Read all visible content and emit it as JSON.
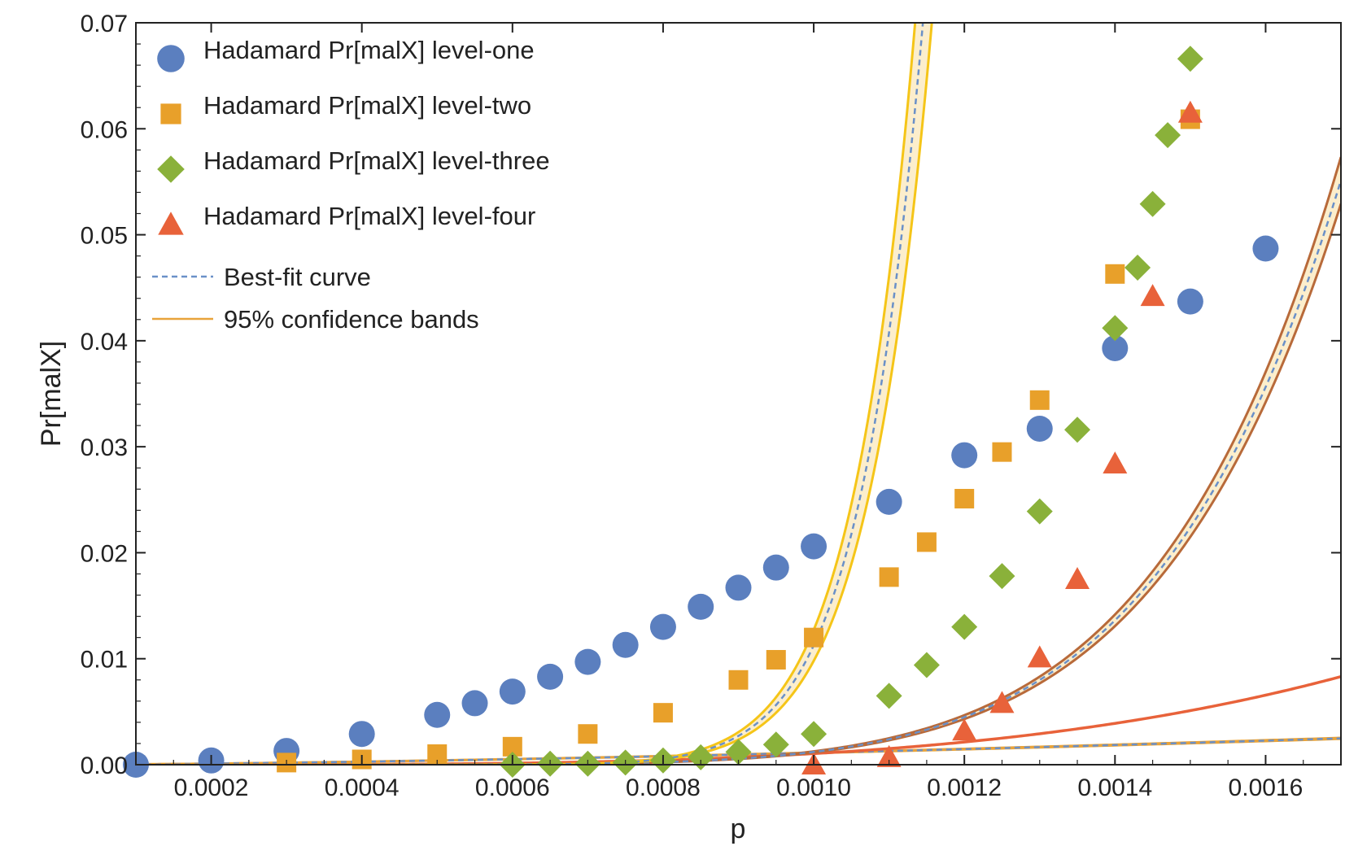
{
  "chart_data": {
    "type": "scatter",
    "title": "",
    "xlabel": "p",
    "ylabel": "Pr[malX]",
    "xlim": [
      0.0001,
      0.0017
    ],
    "ylim": [
      0,
      0.07
    ],
    "grid": false,
    "legend_position": "top-left",
    "x_ticks": [
      {
        "value": 0.0002,
        "label": "0.0002"
      },
      {
        "value": 0.0004,
        "label": "0.0004"
      },
      {
        "value": 0.0006,
        "label": "0.0006"
      },
      {
        "value": 0.0008,
        "label": "0.0008"
      },
      {
        "value": 0.001,
        "label": "0.0010"
      },
      {
        "value": 0.0012,
        "label": "0.0012"
      },
      {
        "value": 0.0014,
        "label": "0.0014"
      },
      {
        "value": 0.0016,
        "label": "0.0016"
      }
    ],
    "y_ticks": [
      {
        "value": 0.0,
        "label": "0.00"
      },
      {
        "value": 0.01,
        "label": "0.01"
      },
      {
        "value": 0.02,
        "label": "0.02"
      },
      {
        "value": 0.03,
        "label": "0.03"
      },
      {
        "value": 0.04,
        "label": "0.04"
      },
      {
        "value": 0.05,
        "label": "0.05"
      },
      {
        "value": 0.06,
        "label": "0.06"
      },
      {
        "value": 0.07,
        "label": "0.07"
      }
    ],
    "series": [
      {
        "name": "Hadamard Pr[malX] level-one",
        "marker": "circle",
        "color": "#5B7FBF",
        "fit_color": "#E8A33A",
        "fit_type": "power",
        "fit_a": 35.46,
        "fit_b": 1.5,
        "band_rel": 0.018,
        "x": [
          0.0001,
          0.0002,
          0.0003,
          0.0004,
          0.0005,
          0.00055,
          0.0006,
          0.00065,
          0.0007,
          0.00075,
          0.0008,
          0.00085,
          0.0009,
          0.00095,
          0.001,
          0.0011,
          0.0012,
          0.0013,
          0.0014,
          0.0015,
          0.0016
        ],
        "y": [
          0.0,
          0.0004,
          0.0013,
          0.0029,
          0.0047,
          0.0058,
          0.0069,
          0.0083,
          0.0097,
          0.0113,
          0.013,
          0.0149,
          0.0167,
          0.0186,
          0.0206,
          0.0248,
          0.0292,
          0.0317,
          0.0393,
          0.0437,
          0.0487
        ]
      },
      {
        "name": "Hadamard Pr[malX] level-two",
        "marker": "square",
        "color": "#E8A02A",
        "fit_color": "#E8623A",
        "fit_type": "power",
        "fit_a": 526000000.0,
        "fit_b": 3.9,
        "band_rel": 0.0,
        "x": [
          0.0003,
          0.0004,
          0.0005,
          0.0006,
          0.0007,
          0.0008,
          0.0009,
          0.00095,
          0.001,
          0.0011,
          0.00115,
          0.0012,
          0.00125,
          0.0013,
          0.0014,
          0.0015
        ],
        "y": [
          0.0002,
          0.0005,
          0.001,
          0.0017,
          0.0029,
          0.0049,
          0.008,
          0.0099,
          0.012,
          0.0177,
          0.021,
          0.0251,
          0.0295,
          0.0344,
          0.0463,
          0.0609
        ]
      },
      {
        "name": "Hadamard Pr[malX] level-three",
        "marker": "diamond",
        "color": "#8AB13A",
        "fit_color": "#B86A3A",
        "fit_type": "power",
        "fit_a": 4.81e+18,
        "fit_b": 7.2,
        "band_rel": 0.04,
        "x": [
          0.0006,
          0.00065,
          0.0007,
          0.00075,
          0.0008,
          0.00085,
          0.0009,
          0.00095,
          0.001,
          0.0011,
          0.00115,
          0.0012,
          0.00125,
          0.0013,
          0.00135,
          0.0014,
          0.00143,
          0.00145,
          0.00147,
          0.0015
        ],
        "y": [
          0.0,
          0.0001,
          0.0001,
          0.0002,
          0.0004,
          0.0007,
          0.0012,
          0.0019,
          0.0029,
          0.0065,
          0.0094,
          0.013,
          0.0178,
          0.0239,
          0.0316,
          0.0412,
          0.0469,
          0.0529,
          0.0594,
          0.0666
        ]
      },
      {
        "name": "Hadamard Pr[malX] level-four",
        "marker": "triangle",
        "color": "#E8623A",
        "fit_color": "#F5C518",
        "fit_type": "power",
        "fit_a": 3.56e+38,
        "fit_b": 13.5,
        "band_rel": 0.13,
        "x": [
          0.001,
          0.0011,
          0.0012,
          0.00125,
          0.0013,
          0.00135,
          0.0014,
          0.00145,
          0.0015
        ],
        "y": [
          0.0,
          0.0007,
          0.0032,
          0.0058,
          0.0101,
          0.0175,
          0.0284,
          0.0442,
          0.0615
        ]
      }
    ],
    "legend": [
      {
        "label": "Hadamard Pr[malX] level-one",
        "symbol": "circle",
        "color": "#5B7FBF"
      },
      {
        "label": "Hadamard Pr[malX] level-two",
        "symbol": "square",
        "color": "#E8A02A"
      },
      {
        "label": "Hadamard Pr[malX] level-three",
        "symbol": "diamond",
        "color": "#8AB13A"
      },
      {
        "label": "Hadamard Pr[malX] level-four",
        "symbol": "triangle",
        "color": "#E8623A"
      },
      {
        "label": "Best-fit curve",
        "symbol": "dashed-line",
        "color": "#6A90C8"
      },
      {
        "label": "95% confidence bands",
        "symbol": "solid-line",
        "color": "#E8A33A"
      }
    ],
    "best_fit_color": "#6A90C8",
    "band_fill_color": "#FBEBC3"
  }
}
